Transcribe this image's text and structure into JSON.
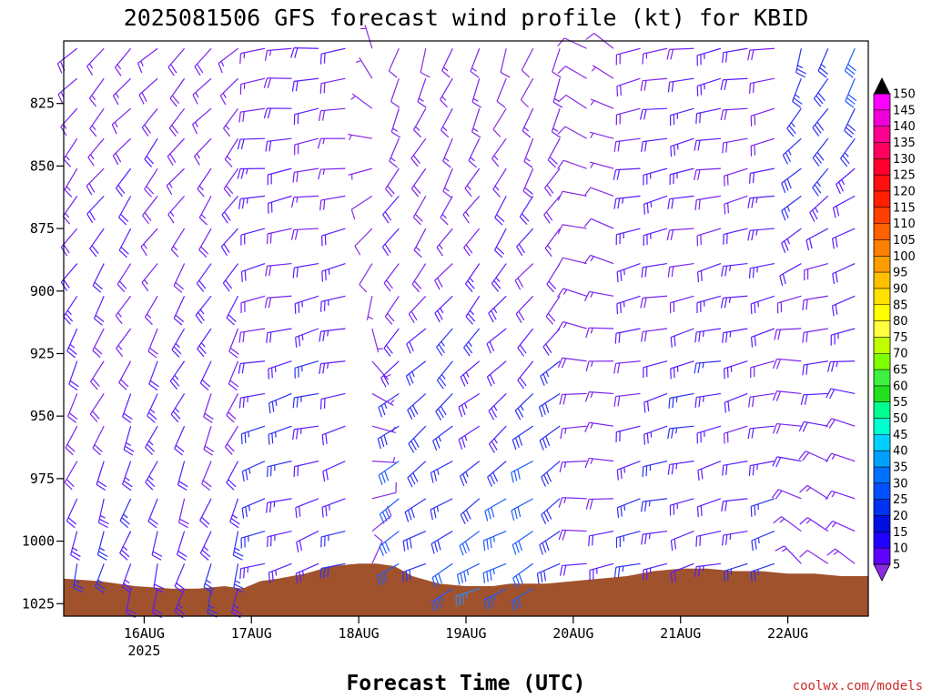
{
  "chart_data": {
    "type": "wind-barb time-height profile",
    "title": "2025081506 GFS forecast wind profile (kt) for KBID",
    "xlabel": "Forecast Time (UTC)",
    "ylabel": "",
    "credit": "coolwx.com/models",
    "x_ticks": [
      {
        "label": "16AUG",
        "sub": "2025",
        "hours": 18
      },
      {
        "label": "17AUG",
        "sub": "",
        "hours": 42
      },
      {
        "label": "18AUG",
        "sub": "",
        "hours": 66
      },
      {
        "label": "19AUG",
        "sub": "",
        "hours": 90
      },
      {
        "label": "20AUG",
        "sub": "",
        "hours": 114
      },
      {
        "label": "21AUG",
        "sub": "",
        "hours": 138
      },
      {
        "label": "22AUG",
        "sub": "",
        "hours": 162
      }
    ],
    "x_range_hours": [
      0,
      180
    ],
    "y_ticks": [
      825,
      850,
      875,
      900,
      925,
      950,
      975,
      1000,
      1025
    ],
    "y_range_hpa": [
      800,
      1030
    ],
    "levels_hpa": [
      803,
      815,
      827,
      839,
      851,
      862,
      875,
      889,
      902,
      915,
      928,
      941,
      954,
      968,
      983,
      996,
      1009,
      1019
    ],
    "colorbar": {
      "labels": [
        150,
        145,
        140,
        135,
        130,
        125,
        120,
        115,
        110,
        105,
        100,
        95,
        90,
        85,
        80,
        75,
        70,
        65,
        60,
        55,
        50,
        45,
        40,
        35,
        30,
        25,
        20,
        15,
        10,
        5
      ],
      "colors": [
        "#ff00ff",
        "#f000d8",
        "#ff0090",
        "#ff0060",
        "#ff0030",
        "#ff1010",
        "#ff2000",
        "#ff4000",
        "#ff6000",
        "#ff8000",
        "#ff9c00",
        "#ffc000",
        "#ffe000",
        "#ffff00",
        "#ffff40",
        "#c0ff00",
        "#80ff00",
        "#40f040",
        "#20e020",
        "#00ff90",
        "#00ffd0",
        "#00d0ff",
        "#00a0ff",
        "#0070ff",
        "#0050ff",
        "#0030f0",
        "#0010e0",
        "#2000ff",
        "#6000ff",
        "#8a2be2"
      ]
    },
    "terrain_color": "#a0522d",
    "terrain_top_hpa": [
      [
        0,
        1015
      ],
      [
        8,
        1016
      ],
      [
        16,
        1018
      ],
      [
        24,
        1019
      ],
      [
        30,
        1019
      ],
      [
        36,
        1018
      ],
      [
        40,
        1019
      ],
      [
        44,
        1016
      ],
      [
        48,
        1015
      ],
      [
        54,
        1013
      ],
      [
        60,
        1010
      ],
      [
        66,
        1009
      ],
      [
        70,
        1009
      ],
      [
        74,
        1010
      ],
      [
        78,
        1014
      ],
      [
        84,
        1017
      ],
      [
        90,
        1018
      ],
      [
        96,
        1018
      ],
      [
        100,
        1017
      ],
      [
        108,
        1017
      ],
      [
        114,
        1016
      ],
      [
        120,
        1015
      ],
      [
        126,
        1014
      ],
      [
        132,
        1012
      ],
      [
        138,
        1011
      ],
      [
        144,
        1011
      ],
      [
        150,
        1012
      ],
      [
        156,
        1012
      ],
      [
        162,
        1013
      ],
      [
        168,
        1013
      ],
      [
        174,
        1014
      ],
      [
        180,
        1014
      ]
    ],
    "wind_regimes": [
      {
        "from_h": 0,
        "to_h": 40,
        "dir_upper": 225,
        "dir_lower": 195,
        "spd_upper": 16,
        "spd_lower": 24
      },
      {
        "from_h": 40,
        "to_h": 66,
        "dir_upper": 265,
        "dir_lower": 250,
        "spd_upper": 18,
        "spd_lower": 26
      },
      {
        "from_h": 66,
        "to_h": 74,
        "dir_upper": 340,
        "dir_lower": 10,
        "spd_upper": 6,
        "spd_lower": 6
      },
      {
        "from_h": 74,
        "to_h": 112,
        "dir_upper": 200,
        "dir_lower": 245,
        "spd_upper": 12,
        "spd_lower": 33
      },
      {
        "from_h": 112,
        "to_h": 125,
        "dir_upper": 300,
        "dir_lower": 260,
        "spd_upper": 6,
        "spd_lower": 22
      },
      {
        "from_h": 125,
        "to_h": 160,
        "dir_upper": 260,
        "dir_lower": 255,
        "spd_upper": 20,
        "spd_lower": 24
      },
      {
        "from_h": 160,
        "to_h": 180,
        "dir_upper": 200,
        "dir_lower": 315,
        "spd_upper": 28,
        "spd_lower": 14
      }
    ]
  }
}
